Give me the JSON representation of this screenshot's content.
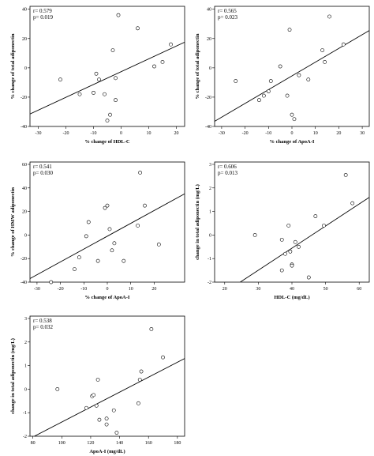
{
  "chart_data": [
    {
      "type": "scatter",
      "title": "",
      "xlabel": "% change of HDL-C",
      "ylabel": "% change of total adiponectin",
      "xlim": [
        -33,
        23
      ],
      "ylim": [
        -40,
        42
      ],
      "xticks": [
        -30,
        -20,
        -10,
        0,
        10,
        20
      ],
      "yticks": [
        -40,
        -20,
        0,
        20,
        40
      ],
      "stat_r": "r= 0.579",
      "stat_p": "p= 0.019",
      "fit": {
        "x": [
          -33,
          23
        ],
        "y": [
          -31.5,
          17.5
        ]
      },
      "points": [
        {
          "x": -22,
          "y": -8
        },
        {
          "x": -15,
          "y": -18
        },
        {
          "x": -10,
          "y": -17
        },
        {
          "x": -9,
          "y": -4
        },
        {
          "x": -8,
          "y": -8
        },
        {
          "x": -6,
          "y": -18
        },
        {
          "x": -5,
          "y": -36
        },
        {
          "x": -4,
          "y": -32
        },
        {
          "x": -3,
          "y": 12
        },
        {
          "x": -2,
          "y": -22
        },
        {
          "x": -2,
          "y": -7
        },
        {
          "x": -1,
          "y": 36
        },
        {
          "x": 6,
          "y": 27
        },
        {
          "x": 12,
          "y": 1
        },
        {
          "x": 15,
          "y": 4
        },
        {
          "x": 18,
          "y": 16
        }
      ]
    },
    {
      "type": "scatter",
      "title": "",
      "xlabel": "% change of ApoA-I",
      "ylabel": "% change of total adiponectin",
      "xlim": [
        -33,
        33
      ],
      "ylim": [
        -40,
        42
      ],
      "xticks": [
        -30,
        -20,
        -10,
        0,
        10,
        20,
        30
      ],
      "yticks": [
        -40,
        -20,
        0,
        20,
        40
      ],
      "stat_r": "r= 0.565",
      "stat_p": "p= 0.023",
      "fit": {
        "x": [
          -33,
          33
        ],
        "y": [
          -36.5,
          25.5
        ]
      },
      "points": [
        {
          "x": -24,
          "y": -9
        },
        {
          "x": -14,
          "y": -22
        },
        {
          "x": -12,
          "y": -19
        },
        {
          "x": -10,
          "y": -16
        },
        {
          "x": -9,
          "y": -9
        },
        {
          "x": -5,
          "y": 1
        },
        {
          "x": -2,
          "y": -19
        },
        {
          "x": -1,
          "y": 26
        },
        {
          "x": 0,
          "y": -32
        },
        {
          "x": 1,
          "y": -35
        },
        {
          "x": 3,
          "y": -5
        },
        {
          "x": 7,
          "y": -8
        },
        {
          "x": 13,
          "y": 12
        },
        {
          "x": 14,
          "y": 4
        },
        {
          "x": 16,
          "y": 35
        },
        {
          "x": 22,
          "y": 16
        }
      ]
    },
    {
      "type": "scatter",
      "title": "",
      "xlabel": "% change of ApoA-I",
      "ylabel": "% change of HMW adiponectin",
      "xlim": [
        -33,
        33
      ],
      "ylim": [
        -40,
        62
      ],
      "xticks": [
        -30,
        -20,
        -10,
        0,
        10,
        20
      ],
      "yticks": [
        -40,
        -20,
        0,
        20,
        40,
        60
      ],
      "stat_r": "r= 0.541",
      "stat_p": "p= 0.030",
      "fit": {
        "x": [
          -33,
          33
        ],
        "y": [
          -37,
          35
        ]
      },
      "points": [
        {
          "x": -24,
          "y": -40
        },
        {
          "x": -14,
          "y": -29
        },
        {
          "x": -12,
          "y": -19
        },
        {
          "x": -9,
          "y": -1
        },
        {
          "x": -8,
          "y": 11
        },
        {
          "x": -4,
          "y": -22
        },
        {
          "x": -1,
          "y": 23
        },
        {
          "x": 0,
          "y": 25
        },
        {
          "x": 1,
          "y": 5
        },
        {
          "x": 2,
          "y": -13
        },
        {
          "x": 3,
          "y": -7
        },
        {
          "x": 7,
          "y": -22
        },
        {
          "x": 13,
          "y": 8
        },
        {
          "x": 14,
          "y": 53
        },
        {
          "x": 16,
          "y": 25
        },
        {
          "x": 22,
          "y": -8
        }
      ]
    },
    {
      "type": "scatter",
      "title": "",
      "xlabel": "HDL-C (mg/dL)",
      "ylabel": "change in total adiponectin (mg/L)",
      "xlim": [
        17,
        63
      ],
      "ylim": [
        -2,
        3.1
      ],
      "xticks": [
        20,
        30,
        40,
        50,
        60
      ],
      "yticks": [
        -2,
        -1,
        0,
        1,
        2,
        3
      ],
      "stat_r": "r= 0.606",
      "stat_p": "p= 0.013",
      "fit": {
        "x": [
          24.6,
          63
        ],
        "y": [
          -2,
          1.6
        ]
      },
      "points": [
        {
          "x": 29,
          "y": 0
        },
        {
          "x": 37,
          "y": -0.2
        },
        {
          "x": 37,
          "y": -1.5
        },
        {
          "x": 38,
          "y": -0.8
        },
        {
          "x": 39,
          "y": 0.4
        },
        {
          "x": 39.5,
          "y": -0.7
        },
        {
          "x": 40,
          "y": -1.25
        },
        {
          "x": 40,
          "y": -1.3
        },
        {
          "x": 41,
          "y": -0.3
        },
        {
          "x": 42,
          "y": -0.5
        },
        {
          "x": 45,
          "y": -1.8
        },
        {
          "x": 47,
          "y": 0.8
        },
        {
          "x": 49.5,
          "y": 0.4
        },
        {
          "x": 56,
          "y": 2.55
        },
        {
          "x": 58,
          "y": 1.35
        }
      ]
    },
    {
      "type": "scatter",
      "title": "",
      "xlabel": "ApoA-I (mg/dL)",
      "ylabel": "change in total adiponectin (mg/L)",
      "xlim": [
        78,
        185
      ],
      "ylim": [
        -2,
        3.1
      ],
      "xticks": [
        80,
        100,
        120,
        140,
        160,
        180
      ],
      "yticks": [
        -2,
        -1,
        0,
        1,
        2,
        3
      ],
      "stat_r": "r= 0.538",
      "stat_p": "p= 0.032",
      "fit": {
        "x": [
          81,
          185
        ],
        "y": [
          -2,
          1.3
        ]
      },
      "points": [
        {
          "x": 97,
          "y": 0
        },
        {
          "x": 117,
          "y": -0.8
        },
        {
          "x": 121,
          "y": -0.3
        },
        {
          "x": 122,
          "y": -0.25
        },
        {
          "x": 124,
          "y": -0.7
        },
        {
          "x": 125,
          "y": 0.4
        },
        {
          "x": 126,
          "y": -1.3
        },
        {
          "x": 131,
          "y": -1.25
        },
        {
          "x": 131,
          "y": -1.5
        },
        {
          "x": 136,
          "y": -0.9
        },
        {
          "x": 138,
          "y": -1.85
        },
        {
          "x": 153,
          "y": -0.6
        },
        {
          "x": 154,
          "y": 0.4
        },
        {
          "x": 155,
          "y": 0.75
        },
        {
          "x": 162,
          "y": 2.55
        },
        {
          "x": 170,
          "y": 1.35
        }
      ]
    }
  ]
}
